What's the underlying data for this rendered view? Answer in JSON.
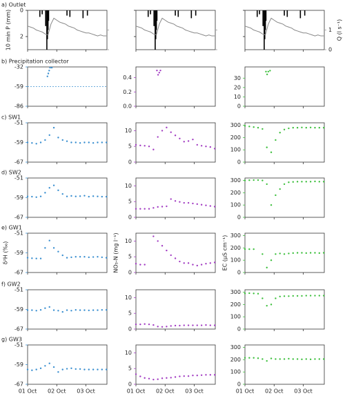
{
  "x_axis": {
    "xlim": [
      0,
      2.72
    ],
    "xticks": [
      {
        "value": 0,
        "label": "01 Oct"
      },
      {
        "value": 1,
        "label": "02 Oct"
      },
      {
        "value": 2,
        "label": "03 Oct"
      }
    ]
  },
  "chart_data": [
    {
      "type": "bar_line",
      "title": "a) Outlet",
      "ylabel": "10 min P (mm)",
      "y2label": "Q (l s⁻¹)",
      "invert_y": true,
      "ylim": [
        0,
        3
      ],
      "yticks": [
        0,
        2
      ],
      "y2lim": [
        0,
        2
      ],
      "y2ticks": [
        0,
        1
      ],
      "precip": {
        "color": "#000000",
        "x": [
          0.42,
          0.5,
          0.62,
          0.66,
          0.68,
          0.7,
          0.72,
          1.35,
          1.45,
          1.9,
          2.05
        ],
        "values": [
          0.5,
          0.3,
          1.2,
          3,
          2.2,
          1.5,
          0.8,
          0.4,
          0.5,
          0.6,
          0.4
        ]
      },
      "discharge": {
        "color": "#888888",
        "axis": "y2",
        "x": [
          0,
          0.1,
          0.2,
          0.3,
          0.4,
          0.5,
          0.6,
          0.7,
          0.8,
          0.9,
          1.0,
          1.1,
          1.2,
          1.3,
          1.4,
          1.5,
          1.6,
          1.7,
          1.8,
          1.9,
          2.0,
          2.1,
          2.2,
          2.3,
          2.4,
          2.5,
          2.6,
          2.7
        ],
        "values": [
          1.2,
          1.15,
          1.1,
          1.0,
          0.95,
          0.9,
          0.8,
          0.75,
          1.3,
          1.6,
          1.5,
          1.4,
          1.35,
          1.3,
          1.2,
          1.15,
          1.1,
          1.0,
          0.95,
          0.9,
          0.85,
          0.85,
          0.8,
          0.75,
          0.7,
          0.75,
          0.7,
          0.7
        ]
      }
    },
    {
      "type": "scatter",
      "title": "b) Precipitation collector",
      "color": "#3a8fd0",
      "ylim": [
        -86,
        -32
      ],
      "yticks": [
        -32,
        -59,
        -86
      ],
      "reference_line": -59,
      "x": [
        0.68,
        0.71,
        0.74,
        0.77,
        0.83
      ],
      "values": [
        -45,
        -41,
        -37,
        -33,
        -33
      ]
    },
    {
      "type": "scatter",
      "color": "#a23cc2",
      "ylim": [
        0,
        0.55
      ],
      "yticks": [
        {
          "value": 0,
          "label": "0.0"
        },
        {
          "value": 0.2,
          "label": "0.2"
        },
        {
          "value": 0.4,
          "label": "0.4"
        }
      ],
      "x": [
        0.72,
        0.76,
        0.8,
        0.84
      ],
      "values": [
        0.5,
        0.44,
        0.47,
        0.5
      ]
    },
    {
      "type": "scatter",
      "color": "#3cbf3c",
      "ylim": [
        0,
        42
      ],
      "yticks": [
        0,
        10,
        20,
        30
      ],
      "x": [
        0.72,
        0.76,
        0.8,
        0.86
      ],
      "values": [
        37,
        34,
        37,
        38
      ]
    },
    {
      "type": "scatter",
      "title": "c) SW1",
      "color": "#3a8fd0",
      "ylim": [
        -67,
        -51
      ],
      "yticks": [
        -51,
        -59,
        -67
      ],
      "x": [
        0,
        0.15,
        0.3,
        0.45,
        0.6,
        0.75,
        0.9,
        1.05,
        1.2,
        1.35,
        1.5,
        1.65,
        1.8,
        1.95,
        2.1,
        2.25,
        2.4,
        2.55,
        2.7
      ],
      "values": [
        -59,
        -59.2,
        -59.5,
        -59,
        -58,
        -56,
        -53,
        -57,
        -58,
        -58.5,
        -59,
        -59,
        -59.2,
        -59,
        -59,
        -59.2,
        -59,
        -59,
        -59
      ]
    },
    {
      "type": "scatter",
      "color": "#a23cc2",
      "ylim": [
        0,
        12.5
      ],
      "yticks": [
        0,
        5,
        10
      ],
      "x": [
        0,
        0.15,
        0.3,
        0.45,
        0.6,
        0.75,
        0.9,
        1.05,
        1.2,
        1.35,
        1.5,
        1.65,
        1.8,
        1.95,
        2.1,
        2.25,
        2.4,
        2.55,
        2.7
      ],
      "values": [
        5.5,
        5.3,
        5.2,
        5,
        4,
        8,
        10,
        11,
        9.5,
        8.5,
        7.5,
        6.5,
        6.7,
        7.2,
        5.5,
        5.2,
        5,
        4.8,
        4.3
      ]
    },
    {
      "type": "scatter",
      "color": "#3cbf3c",
      "ylim": [
        0,
        320
      ],
      "yticks": [
        0,
        100,
        200,
        300
      ],
      "x": [
        0,
        0.15,
        0.3,
        0.45,
        0.6,
        0.75,
        0.9,
        1.05,
        1.2,
        1.35,
        1.5,
        1.65,
        1.8,
        1.95,
        2.1,
        2.25,
        2.4,
        2.55,
        2.7
      ],
      "values": [
        295,
        290,
        285,
        280,
        270,
        120,
        80,
        180,
        240,
        265,
        275,
        280,
        280,
        282,
        280,
        282,
        280,
        280,
        280
      ]
    },
    {
      "type": "scatter",
      "title": "d) SW2",
      "color": "#3a8fd0",
      "ylim": [
        -67,
        -51
      ],
      "yticks": [
        -51,
        -59,
        -67
      ],
      "x": [
        0,
        0.15,
        0.3,
        0.45,
        0.6,
        0.75,
        0.9,
        1.05,
        1.2,
        1.35,
        1.5,
        1.65,
        1.8,
        1.95,
        2.1,
        2.25,
        2.4,
        2.55,
        2.7
      ],
      "values": [
        -58.5,
        -58.6,
        -58.8,
        -58.5,
        -57,
        -55,
        -54,
        -56,
        -57.5,
        -58.5,
        -58.3,
        -58.5,
        -58.4,
        -58.2,
        -58.6,
        -58.4,
        -58.5,
        -58.6,
        -58.6
      ]
    },
    {
      "type": "scatter",
      "color": "#a23cc2",
      "ylim": [
        0,
        12.5
      ],
      "yticks": [
        0,
        5,
        10
      ],
      "x": [
        0,
        0.15,
        0.3,
        0.45,
        0.6,
        0.75,
        0.9,
        1.05,
        1.2,
        1.35,
        1.5,
        1.65,
        1.8,
        1.95,
        2.1,
        2.25,
        2.4,
        2.55,
        2.7
      ],
      "values": [
        2.7,
        2.7,
        2.7,
        2.7,
        3,
        3.3,
        3.4,
        3.5,
        5.8,
        5.2,
        4.9,
        4.6,
        4.6,
        4.4,
        4.2,
        4,
        3.8,
        3.6,
        3.4
      ]
    },
    {
      "type": "scatter",
      "color": "#3cbf3c",
      "ylim": [
        0,
        320
      ],
      "yticks": [
        0,
        100,
        200,
        300
      ],
      "x": [
        0,
        0.15,
        0.3,
        0.45,
        0.6,
        0.75,
        0.9,
        1.05,
        1.2,
        1.35,
        1.5,
        1.65,
        1.8,
        1.95,
        2.1,
        2.25,
        2.4,
        2.55,
        2.7
      ],
      "values": [
        300,
        302,
        303,
        303,
        300,
        270,
        100,
        180,
        230,
        270,
        285,
        288,
        290,
        290,
        290,
        290,
        292,
        290,
        290
      ]
    },
    {
      "type": "scatter",
      "title": "e) GW1",
      "ylabel": "δ²H (‰)",
      "color": "#3a8fd0",
      "ylim": [
        -67,
        -51
      ],
      "yticks": [
        -51,
        -59,
        -67
      ],
      "x": [
        0,
        0.15,
        0.3,
        0.45,
        0.6,
        0.75,
        0.9,
        1.05,
        1.2,
        1.35,
        1.5,
        1.65,
        1.8,
        1.95,
        2.1,
        2.25,
        2.4,
        2.55,
        2.7
      ],
      "values": [
        -61,
        -61.2,
        -61.3,
        -61.3,
        -57,
        -54,
        -57,
        -58.5,
        -60,
        -61,
        -60.8,
        -60.6,
        -60.6,
        -60.6,
        -60.8,
        -60.7,
        -60.6,
        -60.8,
        -61
      ]
    },
    {
      "type": "scatter",
      "ylabel": "NO₃-N (mg l⁻¹)",
      "color": "#a23cc2",
      "ylim": [
        0,
        12.5
      ],
      "yticks": [
        0,
        5,
        10
      ],
      "x": [
        0,
        0.15,
        0.3,
        0.6,
        0.75,
        0.9,
        1.05,
        1.2,
        1.35,
        1.5,
        1.65,
        1.8,
        1.95,
        2.1,
        2.25,
        2.4,
        2.55,
        2.7
      ],
      "values": [
        2.8,
        2.5,
        2.5,
        11.5,
        10,
        8.5,
        7,
        5.5,
        4.5,
        3.5,
        3,
        3,
        2.5,
        2.2,
        2.5,
        2.8,
        3,
        3.2
      ]
    },
    {
      "type": "scatter",
      "ylabel": "EC (µS cm⁻¹)",
      "color": "#3cbf3c",
      "ylim": [
        0,
        320
      ],
      "yticks": [
        0,
        100,
        200,
        300
      ],
      "x": [
        0,
        0.15,
        0.3,
        0.6,
        0.75,
        0.9,
        1.05,
        1.2,
        1.35,
        1.5,
        1.65,
        1.8,
        1.95,
        2.1,
        2.25,
        2.4,
        2.55,
        2.7
      ],
      "values": [
        190,
        190,
        190,
        150,
        40,
        100,
        150,
        155,
        150,
        155,
        158,
        160,
        160,
        158,
        160,
        160,
        158,
        160
      ]
    },
    {
      "type": "scatter",
      "title": "f) GW2",
      "color": "#3a8fd0",
      "ylim": [
        -67,
        -51
      ],
      "yticks": [
        -51,
        -59,
        -67
      ],
      "x": [
        0,
        0.15,
        0.3,
        0.45,
        0.6,
        0.75,
        0.9,
        1.05,
        1.2,
        1.35,
        1.5,
        1.65,
        1.8,
        1.95,
        2.1,
        2.25,
        2.4,
        2.55,
        2.7
      ],
      "values": [
        -59.3,
        -59.3,
        -59.5,
        -59.2,
        -58.5,
        -58,
        -59.3,
        -59.5,
        -60,
        -59.3,
        -59.5,
        -59.2,
        -59.3,
        -59.3,
        -59.4,
        -59.3,
        -59.3,
        -59.2,
        -59.2
      ]
    },
    {
      "type": "scatter",
      "color": "#a23cc2",
      "ylim": [
        0,
        12.5
      ],
      "yticks": [
        0,
        5,
        10
      ],
      "x": [
        0,
        0.15,
        0.3,
        0.45,
        0.6,
        0.75,
        0.9,
        1.05,
        1.2,
        1.35,
        1.5,
        1.65,
        1.8,
        1.95,
        2.1,
        2.25,
        2.4,
        2.55,
        2.7
      ],
      "values": [
        1.5,
        1.5,
        1.6,
        1.5,
        1.3,
        0.8,
        0.7,
        0.8,
        1,
        1.1,
        1.1,
        1.2,
        1.2,
        1.2,
        1.2,
        1.2,
        1.3,
        1.2,
        1.2
      ]
    },
    {
      "type": "scatter",
      "color": "#3cbf3c",
      "ylim": [
        0,
        320
      ],
      "yticks": [
        0,
        100,
        200,
        300
      ],
      "x": [
        0,
        0.15,
        0.3,
        0.45,
        0.6,
        0.75,
        0.9,
        1.05,
        1.2,
        1.35,
        1.5,
        1.65,
        1.8,
        1.95,
        2.1,
        2.25,
        2.4,
        2.55,
        2.7
      ],
      "values": [
        290,
        292,
        290,
        288,
        250,
        190,
        200,
        250,
        265,
        268,
        268,
        270,
        270,
        270,
        272,
        272,
        272,
        272,
        272
      ]
    },
    {
      "type": "scatter",
      "title": "g) GW3",
      "color": "#3a8fd0",
      "ylim": [
        -67,
        -51
      ],
      "yticks": [
        -51,
        -59,
        -67
      ],
      "x": [
        0,
        0.15,
        0.3,
        0.45,
        0.6,
        0.75,
        0.9,
        1.05,
        1.2,
        1.35,
        1.5,
        1.65,
        1.8,
        1.95,
        2.1,
        2.25,
        2.4,
        2.55,
        2.7
      ],
      "values": [
        -61,
        -61.3,
        -61,
        -60.5,
        -59.5,
        -58.5,
        -60,
        -62,
        -61,
        -60.7,
        -60.5,
        -60.8,
        -60.8,
        -61,
        -61,
        -61,
        -61,
        -61,
        -61
      ]
    },
    {
      "type": "scatter",
      "color": "#a23cc2",
      "ylim": [
        0,
        12.5
      ],
      "yticks": [
        0,
        5,
        10
      ],
      "x": [
        0,
        0.15,
        0.3,
        0.45,
        0.6,
        0.75,
        0.9,
        1.05,
        1.2,
        1.35,
        1.5,
        1.65,
        1.8,
        1.95,
        2.1,
        2.25,
        2.4,
        2.55,
        2.7
      ],
      "values": [
        3.2,
        2.5,
        2,
        1.8,
        1.5,
        1.6,
        1.9,
        2,
        2.1,
        2.3,
        2.5,
        2.6,
        2.6,
        2.8,
        2.8,
        2.9,
        3,
        3,
        3
      ]
    },
    {
      "type": "scatter",
      "color": "#3cbf3c",
      "ylim": [
        0,
        320
      ],
      "yticks": [
        0,
        100,
        200,
        300
      ],
      "x": [
        0,
        0.15,
        0.3,
        0.45,
        0.6,
        0.75,
        0.9,
        1.05,
        1.2,
        1.35,
        1.5,
        1.65,
        1.8,
        1.95,
        2.1,
        2.25,
        2.4,
        2.55,
        2.7
      ],
      "values": [
        215,
        215,
        215,
        212,
        205,
        190,
        210,
        205,
        205,
        205,
        208,
        205,
        205,
        203,
        205,
        203,
        205,
        205,
        205
      ]
    }
  ]
}
